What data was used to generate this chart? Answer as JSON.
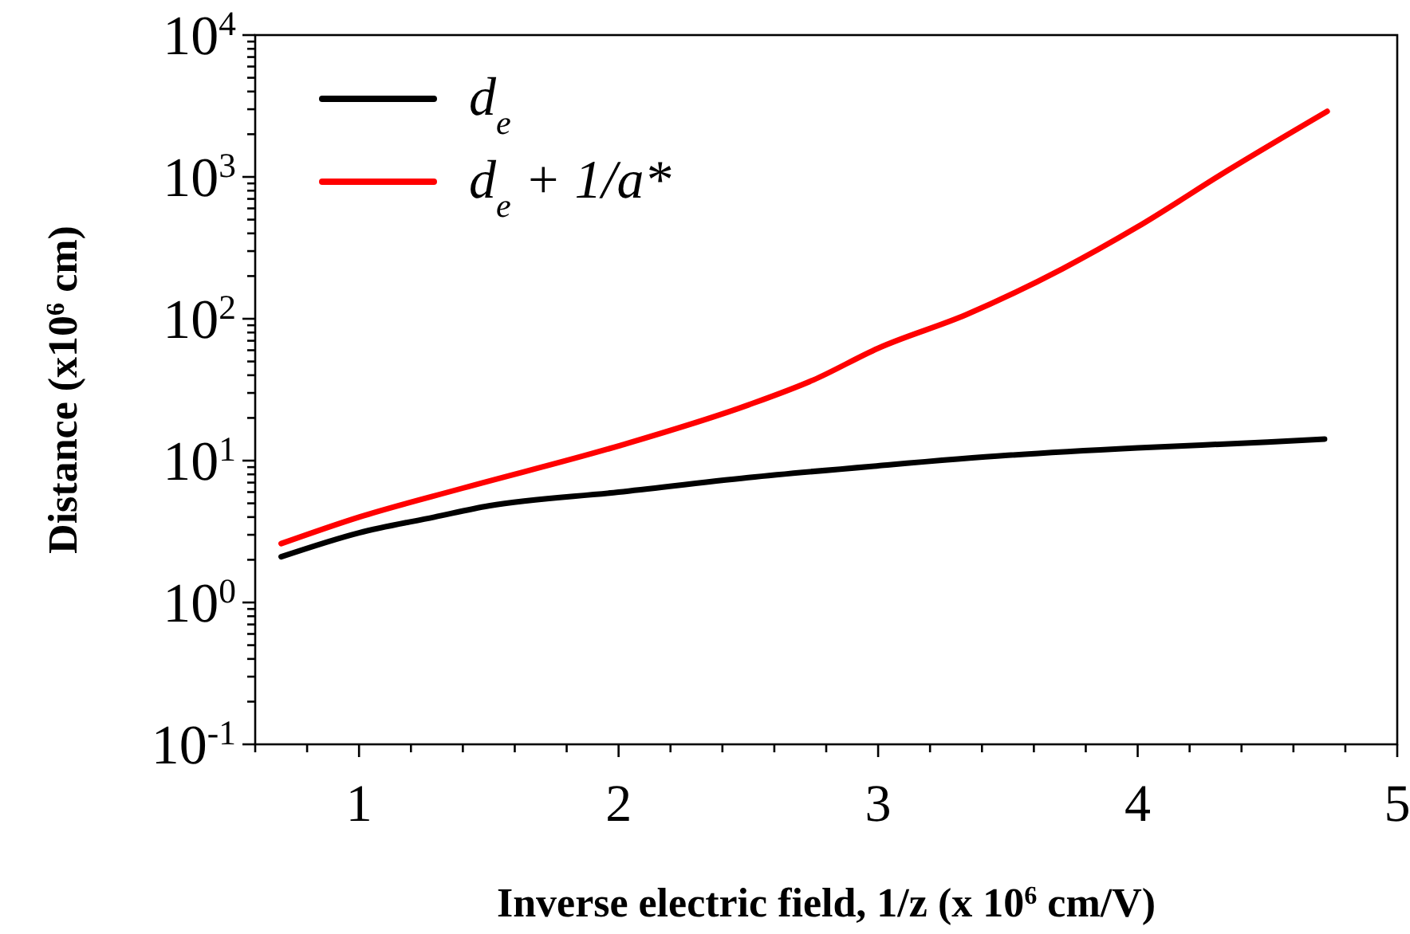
{
  "chart_data": {
    "type": "line",
    "xlabel": "Inverse electric field, 1/z  (x 10$^{6}$ cm/V)",
    "ylabel": "Distance (x10$^{6}$ cm)",
    "log": "y",
    "legend": "top left",
    "grid": false,
    "marker": "none",
    "line_style": "solid",
    "xlim": [
      0.6,
      5
    ],
    "ylim": [
      0.1,
      10000
    ],
    "xticks": [
      {
        "value": 0.6,
        "label": null
      },
      {
        "value": 0.8,
        "label": null
      },
      1,
      {
        "value": 1.2,
        "label": null
      },
      {
        "value": 1.4,
        "label": null
      },
      {
        "value": 1.6,
        "label": null
      },
      {
        "value": 1.8,
        "label": null
      },
      2,
      {
        "value": 2.2,
        "label": null
      },
      {
        "value": 2.4,
        "label": null
      },
      {
        "value": 2.6,
        "label": null
      },
      {
        "value": 2.8,
        "label": null
      },
      3,
      {
        "value": 3.2,
        "label": null
      },
      {
        "value": 3.4,
        "label": null
      },
      {
        "value": 3.6,
        "label": null
      },
      {
        "value": 3.8,
        "label": null
      },
      4,
      {
        "value": 4.2,
        "label": null
      },
      {
        "value": 4.4,
        "label": null
      },
      {
        "value": 4.6,
        "label": null
      },
      {
        "value": 4.8,
        "label": null
      },
      5
    ],
    "yticks": [
      {
        "value": 0.1,
        "label": "10$^{-1}$"
      },
      {
        "value": 0.2,
        "label": null
      },
      {
        "value": 0.3,
        "label": null
      },
      {
        "value": 0.4,
        "label": null
      },
      {
        "value": 0.5,
        "label": null
      },
      {
        "value": 0.6,
        "label": null
      },
      {
        "value": 0.7,
        "label": null
      },
      {
        "value": 0.8,
        "label": null
      },
      {
        "value": 0.9,
        "label": null
      },
      {
        "value": 1,
        "label": "10$^{0}$"
      },
      {
        "value": 2,
        "label": null
      },
      {
        "value": 3,
        "label": null
      },
      {
        "value": 4,
        "label": null
      },
      {
        "value": 5,
        "label": null
      },
      {
        "value": 6,
        "label": null
      },
      {
        "value": 7,
        "label": null
      },
      {
        "value": 8,
        "label": null
      },
      {
        "value": 9,
        "label": null
      },
      {
        "value": 10,
        "label": "10$^{1}$"
      },
      {
        "value": 20,
        "label": null
      },
      {
        "value": 30,
        "label": null
      },
      {
        "value": 40,
        "label": null
      },
      {
        "value": 50,
        "label": null
      },
      {
        "value": 60,
        "label": null
      },
      {
        "value": 70,
        "label": null
      },
      {
        "value": 80,
        "label": null
      },
      {
        "value": 90,
        "label": null
      },
      {
        "value": 100,
        "label": "10$^{2}$"
      },
      {
        "value": 200,
        "label": null
      },
      {
        "value": 300,
        "label": null
      },
      {
        "value": 400,
        "label": null
      },
      {
        "value": 500,
        "label": null
      },
      {
        "value": 600,
        "label": null
      },
      {
        "value": 700,
        "label": null
      },
      {
        "value": 800,
        "label": null
      },
      {
        "value": 900,
        "label": null
      },
      {
        "value": 1000,
        "label": "10$^{3}$"
      },
      {
        "value": 2000,
        "label": null
      },
      {
        "value": 3000,
        "label": null
      },
      {
        "value": 4000,
        "label": null
      },
      {
        "value": 5000,
        "label": null
      },
      {
        "value": 6000,
        "label": null
      },
      {
        "value": 7000,
        "label": null
      },
      {
        "value": 8000,
        "label": null
      },
      {
        "value": 9000,
        "label": null
      },
      {
        "value": 10000,
        "label": "10$^{4}$"
      }
    ],
    "series": [
      {
        "name": "d$_{e}$",
        "color": "#000000",
        "x": [
          0.7,
          1.0,
          1.29,
          1.5,
          2.0,
          2.5,
          3.0,
          3.5,
          4.0,
          4.5,
          4.72
        ],
        "values": [
          2.1,
          3.1,
          4.0,
          4.8,
          6.0,
          7.6,
          9.2,
          10.9,
          12.3,
          13.5,
          14.2
        ]
      },
      {
        "name": "d$_{e}$ + 1/a*",
        "color": "#ff0000",
        "x": [
          0.7,
          1.0,
          1.4,
          2.0,
          2.5,
          2.75,
          3.0,
          3.34,
          3.71,
          4.0,
          4.35,
          4.73
        ],
        "values": [
          2.6,
          4.0,
          6.4,
          12.7,
          24.7,
          37,
          62,
          107,
          225,
          445,
          1120,
          2900
        ]
      }
    ]
  }
}
